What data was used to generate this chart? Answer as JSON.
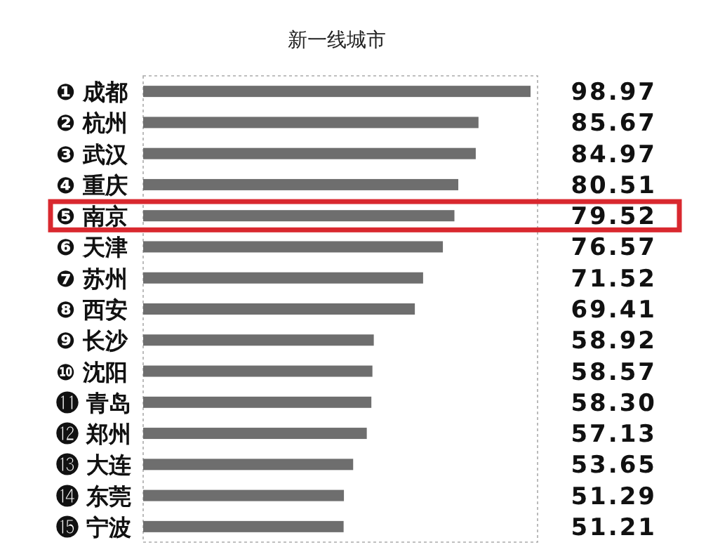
{
  "chart_data": {
    "type": "bar",
    "orientation": "horizontal",
    "title": "新一线城市",
    "categories": [
      "❶ 成都",
      "❷ 杭州",
      "❸ 武汉",
      "❹ 重庆",
      "❺ 南京",
      "❻ 天津",
      "❼ 苏州",
      "❽ 西安",
      "❾ 长沙",
      "❿ 沈阳",
      "⓫ 青岛",
      "⓬ 郑州",
      "⓭ 大连",
      "⓮ 东莞",
      "⓯ 宁波"
    ],
    "values": [
      98.97,
      85.67,
      84.97,
      80.51,
      79.52,
      76.57,
      71.52,
      69.41,
      58.92,
      58.57,
      58.3,
      57.13,
      53.65,
      51.29,
      51.21
    ],
    "value_labels": [
      "98.97",
      "85.67",
      "84.97",
      "80.51",
      "79.52",
      "76.57",
      "71.52",
      "69.41",
      "58.92",
      "58.57",
      "58.30",
      "57.13",
      "53.65",
      "51.29",
      "51.21"
    ],
    "color": "#6e6e6e"
  }
}
